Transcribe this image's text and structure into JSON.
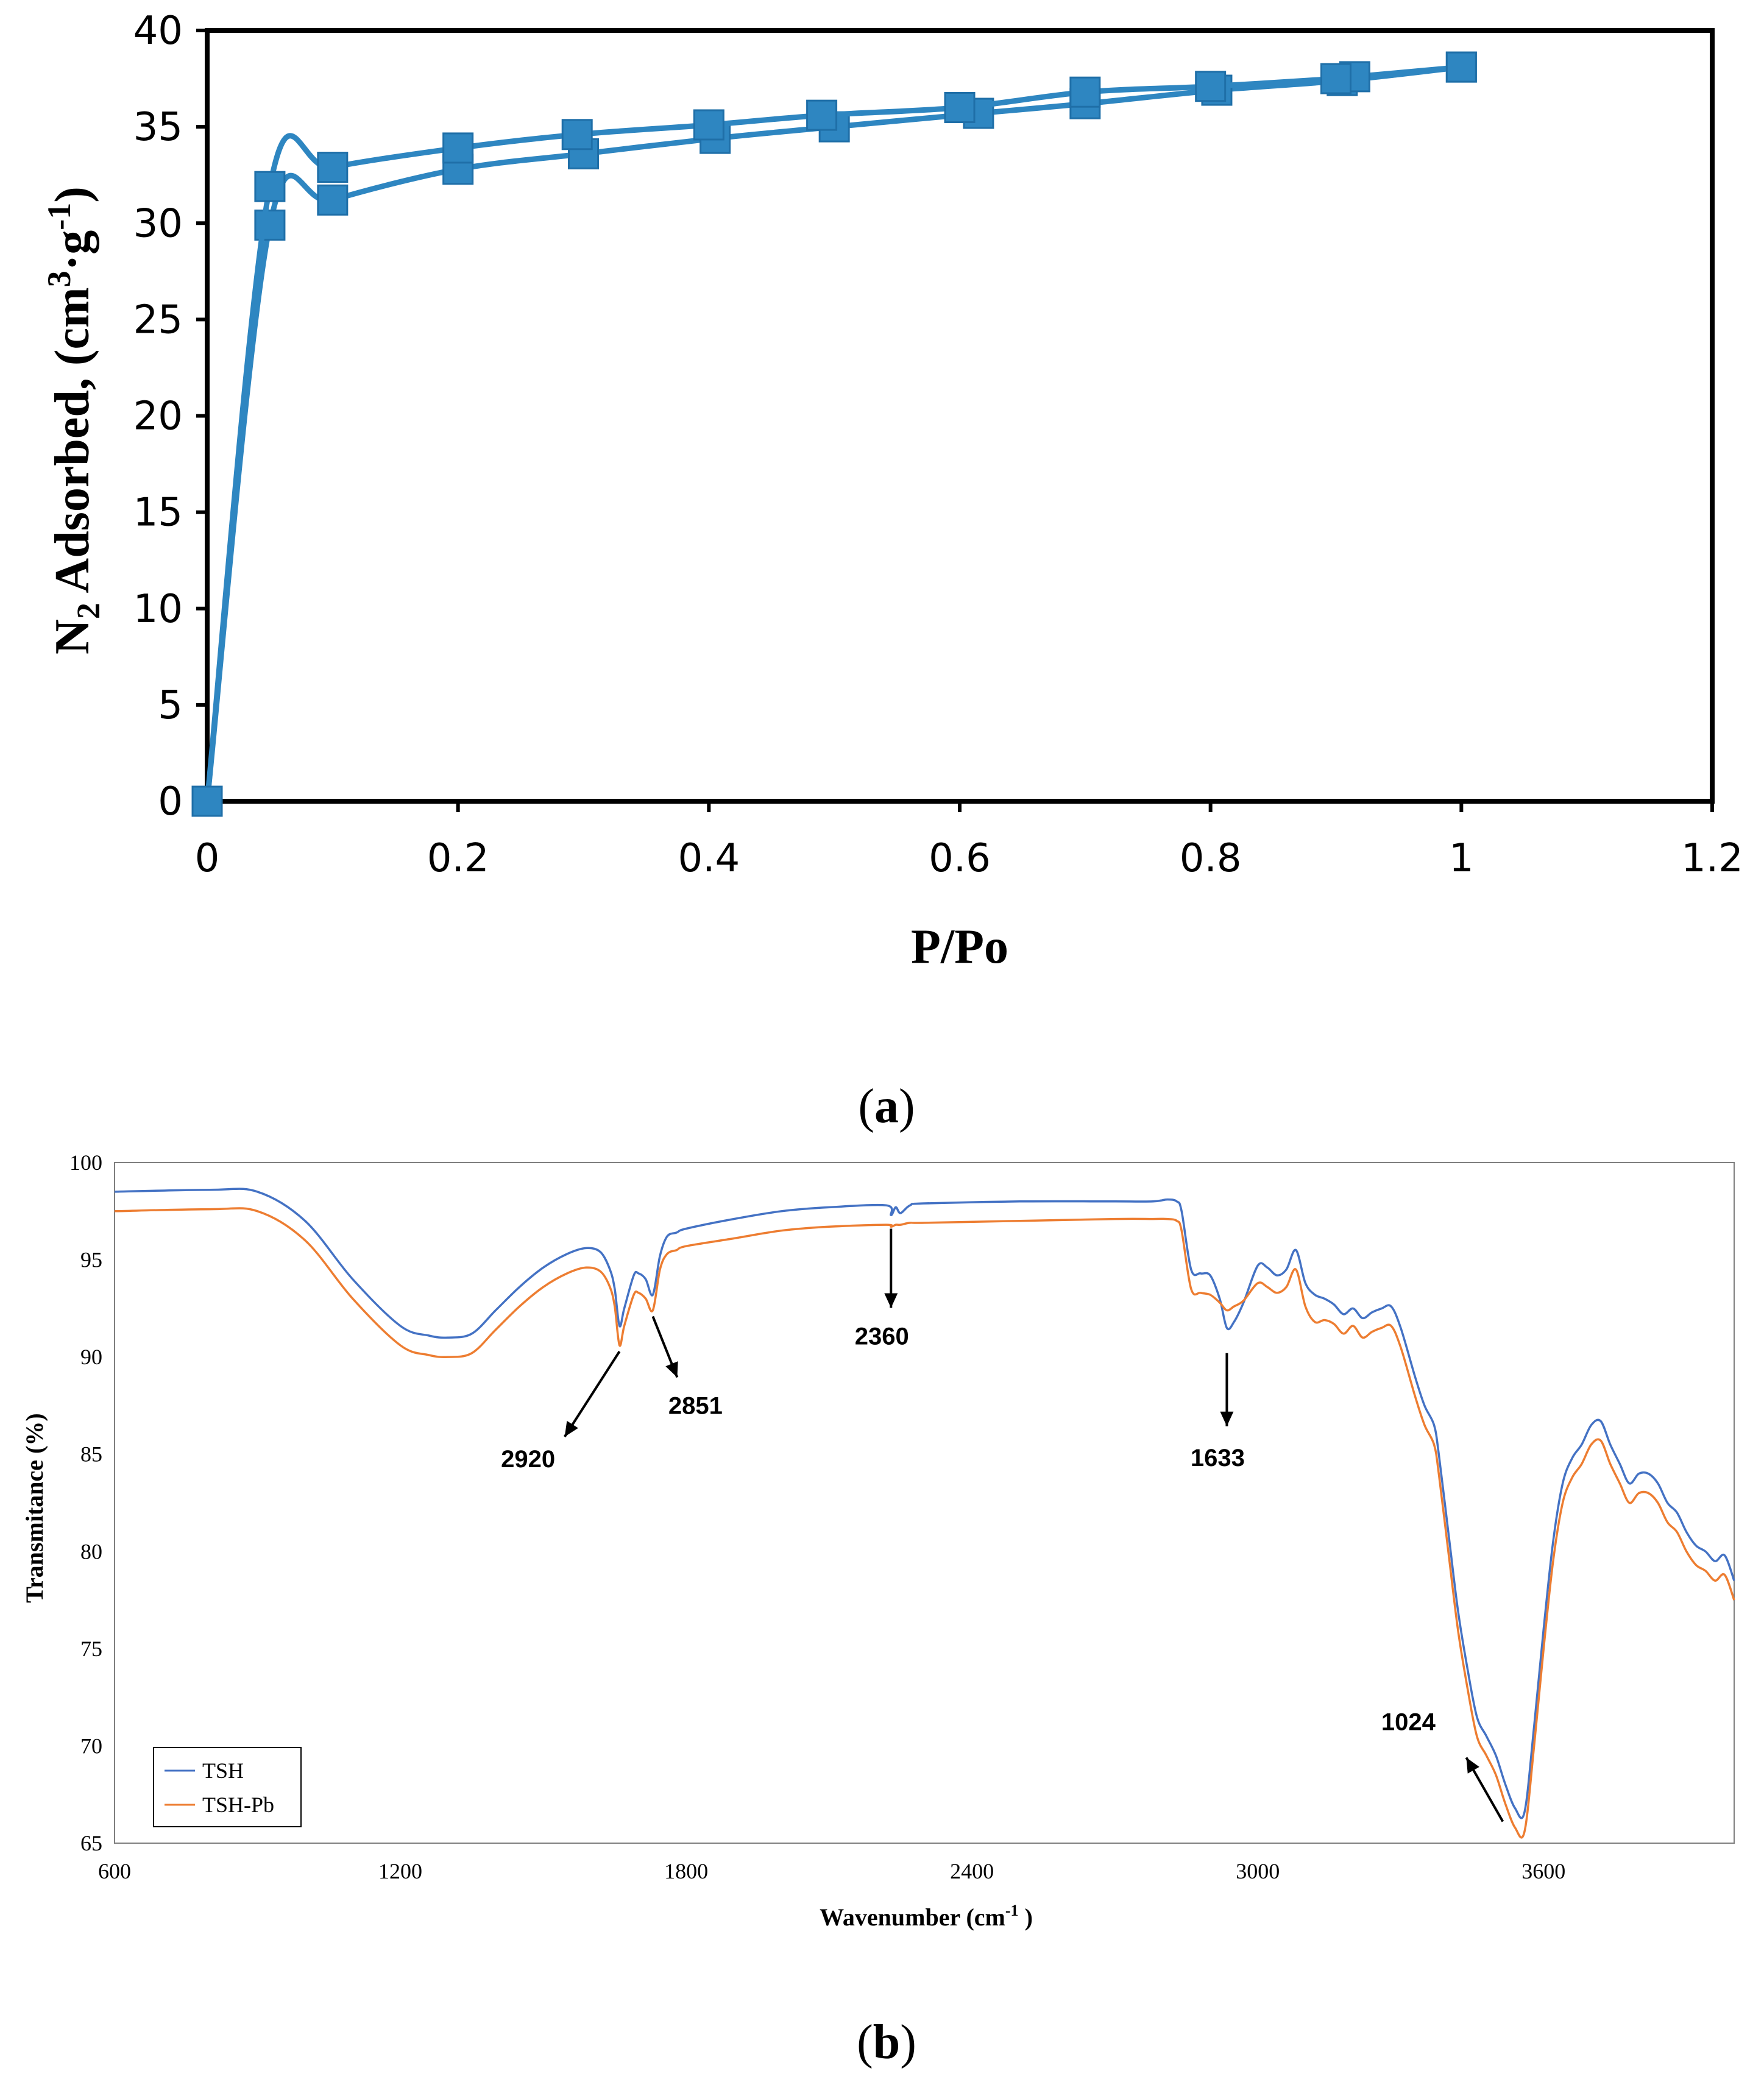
{
  "chart_data": [
    {
      "id": "a",
      "type": "line",
      "caption_letter": "a",
      "xlabel": "P/Po",
      "ylabel_parts": {
        "prefix": "N",
        "sub": "2",
        "mid": " Adsorbed, (cm",
        "sup1": "3",
        "mid2": "·g",
        "sup2": "-1",
        "suffix": ")"
      },
      "xlim": [
        0,
        1.2
      ],
      "ylim": [
        0,
        40
      ],
      "xticks": [
        0,
        0.2,
        0.4,
        0.6,
        0.8,
        1,
        1.2
      ],
      "xtick_labels": [
        "0",
        "0.2",
        "0.4",
        "0.6",
        "0.8",
        "1",
        "1.2"
      ],
      "yticks": [
        0,
        5,
        10,
        15,
        20,
        25,
        30,
        35,
        40
      ],
      "ytick_labels": [
        "0",
        "5",
        "10",
        "15",
        "20",
        "25",
        "30",
        "35",
        "40"
      ],
      "color": "#2e86c1",
      "series": [
        {
          "name": "adsorption",
          "x": [
            0,
            0.05,
            0.1,
            0.2,
            0.3,
            0.405,
            0.5,
            0.615,
            0.7,
            0.805,
            0.905,
            1.0
          ],
          "y": [
            0,
            29.9,
            31.2,
            32.8,
            33.6,
            34.4,
            35.0,
            35.7,
            36.2,
            36.9,
            37.4,
            38.1
          ]
        },
        {
          "name": "desorption",
          "x": [
            1.0,
            0.915,
            0.9,
            0.8,
            0.7,
            0.6,
            0.49,
            0.4,
            0.295,
            0.2,
            0.1,
            0.05,
            0
          ],
          "y": [
            38.1,
            37.6,
            37.5,
            37.1,
            36.8,
            36.0,
            35.6,
            35.1,
            34.6,
            33.9,
            32.9,
            31.9,
            0
          ]
        }
      ]
    },
    {
      "id": "b",
      "type": "line",
      "caption_letter": "b",
      "xlabel": "Wavenumber (cm",
      "xlabel_sup": "-1",
      "xlabel_suffix": " )",
      "ylabel": "Transmitance (%)",
      "xlim": [
        600,
        4000
      ],
      "ylim": [
        65,
        100
      ],
      "xticks": [
        600,
        1200,
        1800,
        2400,
        3000,
        3600
      ],
      "xtick_labels": [
        "600",
        "1200",
        "1800",
        "2400",
        "3000",
        "3600"
      ],
      "yticks": [
        65,
        70,
        75,
        80,
        85,
        90,
        95,
        100
      ],
      "ytick_labels": [
        "65",
        "70",
        "75",
        "80",
        "85",
        "90",
        "95",
        "100"
      ],
      "series": [
        {
          "name": "TSH",
          "color": "#4472c4",
          "x": [
            600,
            800,
            900,
            1000,
            1100,
            1200,
            1260,
            1300,
            1350,
            1400,
            1450,
            1500,
            1550,
            1590,
            1620,
            1640,
            1650,
            1660,
            1670,
            1690,
            1700,
            1715,
            1730,
            1745,
            1760,
            1780,
            1800,
            1900,
            2000,
            2100,
            2220,
            2230,
            2240,
            2250,
            2270,
            2300,
            2500,
            2700,
            2780,
            2810,
            2830,
            2840,
            2860,
            2880,
            2900,
            2920,
            2935,
            2950,
            2970,
            3000,
            3020,
            3040,
            3060,
            3080,
            3100,
            3120,
            3140,
            3160,
            3180,
            3200,
            3220,
            3240,
            3260,
            3280,
            3300,
            3330,
            3350,
            3370,
            3380,
            3400,
            3420,
            3440,
            3460,
            3480,
            3500,
            3520,
            3540,
            3560,
            3580,
            3600,
            3620,
            3640,
            3660,
            3680,
            3700,
            3720,
            3740,
            3760,
            3780,
            3800,
            3820,
            3840,
            3860,
            3880,
            3900,
            3920,
            3940,
            3960,
            3980,
            4000
          ],
          "y": [
            98.5,
            98.6,
            98.5,
            97.0,
            94.0,
            91.6,
            91.1,
            91.0,
            91.2,
            92.4,
            93.6,
            94.6,
            95.3,
            95.6,
            95.4,
            94.5,
            93.5,
            91.6,
            92.5,
            94.2,
            94.3,
            94.0,
            93.2,
            95.2,
            96.2,
            96.4,
            96.6,
            97.1,
            97.5,
            97.7,
            97.8,
            97.3,
            97.7,
            97.4,
            97.8,
            97.9,
            98.0,
            98.0,
            98.0,
            98.1,
            98.0,
            97.5,
            94.5,
            94.3,
            94.2,
            93.0,
            91.5,
            91.8,
            92.8,
            94.7,
            94.6,
            94.2,
            94.5,
            95.5,
            93.8,
            93.2,
            93.0,
            92.7,
            92.2,
            92.5,
            92.0,
            92.3,
            92.5,
            92.6,
            91.5,
            89.0,
            87.5,
            86.5,
            85.0,
            81.0,
            77.0,
            74.0,
            71.5,
            70.5,
            69.5,
            68.0,
            66.8,
            66.6,
            71.0,
            76.0,
            80.5,
            83.5,
            84.8,
            85.5,
            86.5,
            86.7,
            85.5,
            84.5,
            83.5,
            84.0,
            84.0,
            83.5,
            82.5,
            82.0,
            81.0,
            80.3,
            80.0,
            79.5,
            79.8,
            78.5
          ]
        },
        {
          "name": "TSH-Pb",
          "color": "#ed7d31",
          "x": [
            600,
            800,
            900,
            1000,
            1100,
            1200,
            1260,
            1300,
            1350,
            1400,
            1450,
            1500,
            1550,
            1590,
            1620,
            1640,
            1650,
            1660,
            1670,
            1690,
            1700,
            1715,
            1730,
            1745,
            1760,
            1780,
            1800,
            1900,
            2000,
            2100,
            2220,
            2230,
            2240,
            2250,
            2270,
            2300,
            2500,
            2700,
            2780,
            2810,
            2830,
            2840,
            2860,
            2880,
            2900,
            2920,
            2935,
            2950,
            2970,
            3000,
            3020,
            3040,
            3060,
            3080,
            3100,
            3120,
            3140,
            3160,
            3180,
            3200,
            3220,
            3240,
            3260,
            3280,
            3300,
            3330,
            3350,
            3370,
            3380,
            3400,
            3420,
            3440,
            3460,
            3480,
            3500,
            3520,
            3540,
            3560,
            3580,
            3600,
            3620,
            3640,
            3660,
            3680,
            3700,
            3720,
            3740,
            3760,
            3780,
            3800,
            3820,
            3840,
            3860,
            3880,
            3900,
            3920,
            3940,
            3960,
            3980,
            4000
          ],
          "y": [
            97.5,
            97.6,
            97.5,
            96.0,
            93.0,
            90.6,
            90.1,
            90.0,
            90.2,
            91.4,
            92.6,
            93.6,
            94.3,
            94.6,
            94.4,
            93.6,
            92.6,
            90.6,
            91.6,
            93.2,
            93.3,
            93.0,
            92.4,
            94.5,
            95.3,
            95.5,
            95.7,
            96.1,
            96.5,
            96.7,
            96.8,
            96.7,
            96.8,
            96.8,
            96.9,
            96.9,
            97.0,
            97.1,
            97.1,
            97.1,
            97.0,
            96.5,
            93.5,
            93.3,
            93.2,
            92.8,
            92.4,
            92.6,
            92.9,
            93.8,
            93.6,
            93.3,
            93.6,
            94.5,
            92.6,
            91.8,
            91.9,
            91.7,
            91.2,
            91.6,
            91.0,
            91.3,
            91.5,
            91.6,
            90.5,
            88.0,
            86.5,
            85.5,
            84.0,
            80.0,
            76.0,
            73.0,
            70.5,
            69.5,
            68.5,
            67.0,
            65.8,
            65.6,
            70.0,
            75.0,
            79.5,
            82.5,
            83.8,
            84.5,
            85.5,
            85.7,
            84.5,
            83.5,
            82.5,
            83.0,
            83.0,
            82.5,
            81.5,
            81.0,
            80.0,
            79.3,
            79.0,
            78.5,
            78.8,
            77.5
          ]
        }
      ],
      "legend": [
        "TSH",
        "TSH-Pb"
      ],
      "annotations": [
        {
          "label": "2920",
          "x": 1660,
          "y": 90.6
        },
        {
          "label": "2851",
          "x": 1730,
          "y": 92.4
        },
        {
          "label": "2360",
          "x": 2230,
          "y": 96.7
        },
        {
          "label": "1633",
          "x": 2935,
          "y": 91.5
        },
        {
          "label": "1024",
          "x": 3540,
          "y": 65.8
        }
      ]
    }
  ]
}
